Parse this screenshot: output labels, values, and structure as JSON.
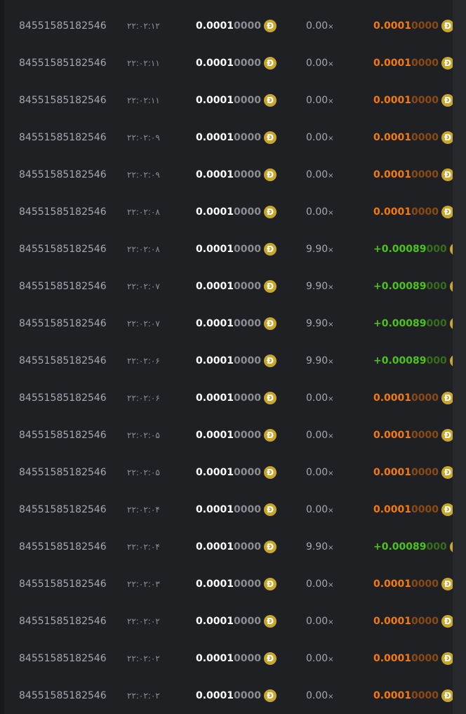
{
  "currency_icon": "dogecoin-icon",
  "colors": {
    "loss": "#f47a0c",
    "win": "#4cc417",
    "coin": "#c9a72a"
  },
  "rows": [
    {
      "id": "84551585182546",
      "time": "۲۲:۰۲:۱۲",
      "bet_main": "0.0001",
      "bet_dim": "0000",
      "mult": "0.00",
      "mult_suffix": "×",
      "payout_main": "0.0001",
      "payout_dim": "0000",
      "result": "loss"
    },
    {
      "id": "84551585182546",
      "time": "۲۲:۰۲:۱۱",
      "bet_main": "0.0001",
      "bet_dim": "0000",
      "mult": "0.00",
      "mult_suffix": "×",
      "payout_main": "0.0001",
      "payout_dim": "0000",
      "result": "loss"
    },
    {
      "id": "84551585182546",
      "time": "۲۲:۰۲:۱۱",
      "bet_main": "0.0001",
      "bet_dim": "0000",
      "mult": "0.00",
      "mult_suffix": "×",
      "payout_main": "0.0001",
      "payout_dim": "0000",
      "result": "loss"
    },
    {
      "id": "84551585182546",
      "time": "۲۲:۰۲:۰۹",
      "bet_main": "0.0001",
      "bet_dim": "0000",
      "mult": "0.00",
      "mult_suffix": "×",
      "payout_main": "0.0001",
      "payout_dim": "0000",
      "result": "loss"
    },
    {
      "id": "84551585182546",
      "time": "۲۲:۰۲:۰۹",
      "bet_main": "0.0001",
      "bet_dim": "0000",
      "mult": "0.00",
      "mult_suffix": "×",
      "payout_main": "0.0001",
      "payout_dim": "0000",
      "result": "loss"
    },
    {
      "id": "84551585182546",
      "time": "۲۲:۰۲:۰۸",
      "bet_main": "0.0001",
      "bet_dim": "0000",
      "mult": "0.00",
      "mult_suffix": "×",
      "payout_main": "0.0001",
      "payout_dim": "0000",
      "result": "loss"
    },
    {
      "id": "84551585182546",
      "time": "۲۲:۰۲:۰۸",
      "bet_main": "0.0001",
      "bet_dim": "0000",
      "mult": "9.90",
      "mult_suffix": "×",
      "payout_main": "+0.00089",
      "payout_dim": "000",
      "result": "win"
    },
    {
      "id": "84551585182546",
      "time": "۲۲:۰۲:۰۷",
      "bet_main": "0.0001",
      "bet_dim": "0000",
      "mult": "9.90",
      "mult_suffix": "×",
      "payout_main": "+0.00089",
      "payout_dim": "000",
      "result": "win"
    },
    {
      "id": "84551585182546",
      "time": "۲۲:۰۲:۰۷",
      "bet_main": "0.0001",
      "bet_dim": "0000",
      "mult": "9.90",
      "mult_suffix": "×",
      "payout_main": "+0.00089",
      "payout_dim": "000",
      "result": "win"
    },
    {
      "id": "84551585182546",
      "time": "۲۲:۰۲:۰۶",
      "bet_main": "0.0001",
      "bet_dim": "0000",
      "mult": "9.90",
      "mult_suffix": "×",
      "payout_main": "+0.00089",
      "payout_dim": "000",
      "result": "win"
    },
    {
      "id": "84551585182546",
      "time": "۲۲:۰۲:۰۶",
      "bet_main": "0.0001",
      "bet_dim": "0000",
      "mult": "0.00",
      "mult_suffix": "×",
      "payout_main": "0.0001",
      "payout_dim": "0000",
      "result": "loss"
    },
    {
      "id": "84551585182546",
      "time": "۲۲:۰۲:۰۵",
      "bet_main": "0.0001",
      "bet_dim": "0000",
      "mult": "0.00",
      "mult_suffix": "×",
      "payout_main": "0.0001",
      "payout_dim": "0000",
      "result": "loss"
    },
    {
      "id": "84551585182546",
      "time": "۲۲:۰۲:۰۵",
      "bet_main": "0.0001",
      "bet_dim": "0000",
      "mult": "0.00",
      "mult_suffix": "×",
      "payout_main": "0.0001",
      "payout_dim": "0000",
      "result": "loss"
    },
    {
      "id": "84551585182546",
      "time": "۲۲:۰۲:۰۴",
      "bet_main": "0.0001",
      "bet_dim": "0000",
      "mult": "0.00",
      "mult_suffix": "×",
      "payout_main": "0.0001",
      "payout_dim": "0000",
      "result": "loss"
    },
    {
      "id": "84551585182546",
      "time": "۲۲:۰۲:۰۴",
      "bet_main": "0.0001",
      "bet_dim": "0000",
      "mult": "9.90",
      "mult_suffix": "×",
      "payout_main": "+0.00089",
      "payout_dim": "000",
      "result": "win"
    },
    {
      "id": "84551585182546",
      "time": "۲۲:۰۲:۰۳",
      "bet_main": "0.0001",
      "bet_dim": "0000",
      "mult": "0.00",
      "mult_suffix": "×",
      "payout_main": "0.0001",
      "payout_dim": "0000",
      "result": "loss"
    },
    {
      "id": "84551585182546",
      "time": "۲۲:۰۲:۰۲",
      "bet_main": "0.0001",
      "bet_dim": "0000",
      "mult": "0.00",
      "mult_suffix": "×",
      "payout_main": "0.0001",
      "payout_dim": "0000",
      "result": "loss"
    },
    {
      "id": "84551585182546",
      "time": "۲۲:۰۲:۰۲",
      "bet_main": "0.0001",
      "bet_dim": "0000",
      "mult": "0.00",
      "mult_suffix": "×",
      "payout_main": "0.0001",
      "payout_dim": "0000",
      "result": "loss"
    },
    {
      "id": "84551585182546",
      "time": "۲۲:۰۲:۰۲",
      "bet_main": "0.0001",
      "bet_dim": "0000",
      "mult": "0.00",
      "mult_suffix": "×",
      "payout_main": "0.0001",
      "payout_dim": "0000",
      "result": "loss"
    }
  ]
}
